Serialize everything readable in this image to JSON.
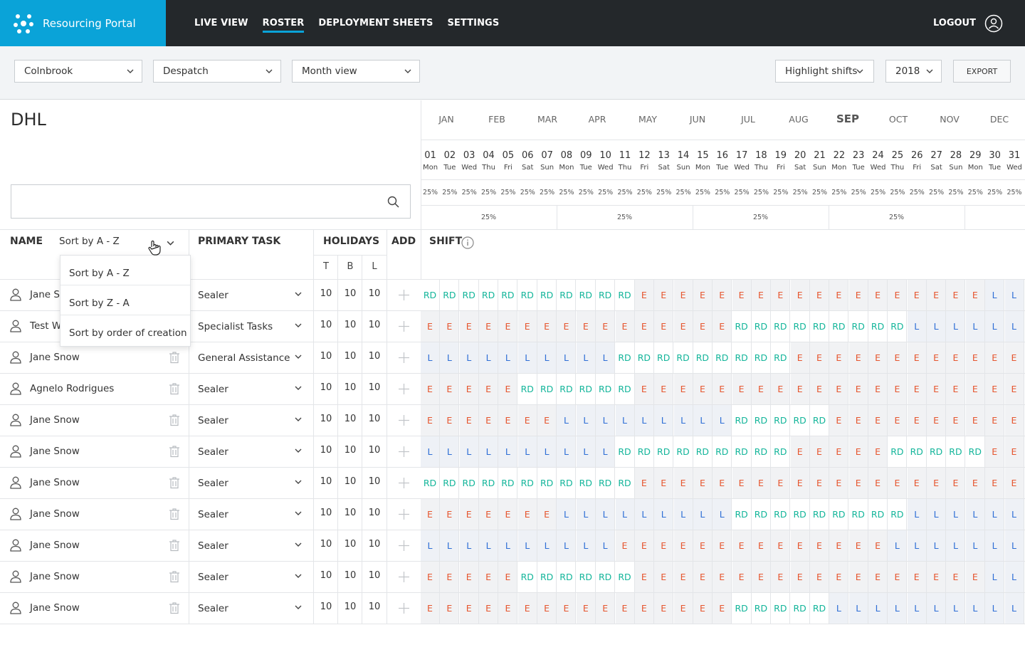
{
  "nav": {
    "brand": "Resourcing Portal",
    "items": [
      {
        "label": "LIVE VIEW",
        "active": false
      },
      {
        "label": "ROSTER",
        "active": true
      },
      {
        "label": "DEPLOYMENT SHEETS",
        "active": false
      },
      {
        "label": "SETTINGS",
        "active": false
      }
    ],
    "logout": "LOGOUT"
  },
  "filters": {
    "site": "Colnbrook",
    "department": "Despatch",
    "view": "Month view",
    "highlight": "Highlight shifts",
    "year": "2018",
    "export": "EXPORT"
  },
  "company": "DHL",
  "search": {
    "placeholder": "",
    "value": ""
  },
  "months": [
    "JAN",
    "FEB",
    "MAR",
    "APR",
    "MAY",
    "JUN",
    "JUL",
    "AUG",
    "SEP",
    "OCT",
    "NOV",
    "DEC"
  ],
  "current_month": "SEP",
  "days": [
    {
      "n": "01",
      "d": "Mon"
    },
    {
      "n": "02",
      "d": "Tue"
    },
    {
      "n": "03",
      "d": "Wed"
    },
    {
      "n": "04",
      "d": "Thu"
    },
    {
      "n": "05",
      "d": "Fri"
    },
    {
      "n": "06",
      "d": "Sat"
    },
    {
      "n": "07",
      "d": "Sun"
    },
    {
      "n": "08",
      "d": "Mon"
    },
    {
      "n": "09",
      "d": "Tue"
    },
    {
      "n": "10",
      "d": "Wed"
    },
    {
      "n": "11",
      "d": "Thu"
    },
    {
      "n": "12",
      "d": "Fri"
    },
    {
      "n": "13",
      "d": "Sat"
    },
    {
      "n": "14",
      "d": "Sun"
    },
    {
      "n": "15",
      "d": "Mon"
    },
    {
      "n": "16",
      "d": "Tue"
    },
    {
      "n": "17",
      "d": "Wed"
    },
    {
      "n": "18",
      "d": "Thu"
    },
    {
      "n": "19",
      "d": "Fri"
    },
    {
      "n": "20",
      "d": "Sat"
    },
    {
      "n": "21",
      "d": "Sun"
    },
    {
      "n": "22",
      "d": "Mon"
    },
    {
      "n": "23",
      "d": "Tue"
    },
    {
      "n": "24",
      "d": "Wed"
    },
    {
      "n": "25",
      "d": "Thu"
    },
    {
      "n": "26",
      "d": "Fri"
    },
    {
      "n": "27",
      "d": "Sat"
    },
    {
      "n": "28",
      "d": "Sun"
    },
    {
      "n": "29",
      "d": "Mon"
    },
    {
      "n": "30",
      "d": "Tue"
    },
    {
      "n": "31",
      "d": "Wed"
    }
  ],
  "day_percent": "25%",
  "week_percents": [
    "25%",
    "25%",
    "25%",
    "25%"
  ],
  "columns": {
    "name": "NAME",
    "sort": "Sort by A - Z",
    "primary_task": "PRIMARY TASK",
    "holidays": "HOLIDAYS",
    "holiday_sub": [
      "T",
      "B",
      "L"
    ],
    "add": "ADD",
    "shift": "SHIFT"
  },
  "sort_dropdown": [
    "Sort by A - Z",
    "Sort by Z - A",
    "Sort by order of creation"
  ],
  "rows": [
    {
      "name": "Jane Snow",
      "task": "Sealer",
      "hol": [
        "10",
        "10",
        "10"
      ],
      "shifts": [
        "RD",
        "RD",
        "RD",
        "RD",
        "RD",
        "RD",
        "RD",
        "RD",
        "RD",
        "RD",
        "RD",
        "E",
        "E",
        "E",
        "E",
        "E",
        "E",
        "E",
        "E",
        "E",
        "E",
        "E",
        "E",
        "E",
        "E",
        "E",
        "E",
        "E",
        "E",
        "L",
        "L"
      ]
    },
    {
      "name": "Test W",
      "task": "Specialist Tasks",
      "hol": [
        "10",
        "10",
        "10"
      ],
      "shifts": [
        "E",
        "E",
        "E",
        "E",
        "E",
        "E",
        "E",
        "E",
        "E",
        "E",
        "E",
        "E",
        "E",
        "E",
        "E",
        "E",
        "RD",
        "RD",
        "RD",
        "RD",
        "RD",
        "RD",
        "RD",
        "RD",
        "RD",
        "L",
        "L",
        "L",
        "L",
        "L",
        "L"
      ]
    },
    {
      "name": "Jane Snow",
      "task": "General Assistance",
      "hol": [
        "10",
        "10",
        "10"
      ],
      "shifts": [
        "L",
        "L",
        "L",
        "L",
        "L",
        "L",
        "L",
        "L",
        "L",
        "L",
        "RD",
        "RD",
        "RD",
        "RD",
        "RD",
        "RD",
        "RD",
        "RD",
        "RD",
        "E",
        "E",
        "E",
        "E",
        "E",
        "E",
        "E",
        "E",
        "E",
        "E",
        "E",
        "E"
      ]
    },
    {
      "name": "Agnelo Rodrigues",
      "task": "Sealer",
      "hol": [
        "10",
        "10",
        "10"
      ],
      "shifts": [
        "E",
        "E",
        "E",
        "E",
        "E",
        "RD",
        "RD",
        "RD",
        "RD",
        "RD",
        "RD",
        "E",
        "E",
        "E",
        "E",
        "E",
        "E",
        "E",
        "E",
        "E",
        "E",
        "E",
        "E",
        "E",
        "E",
        "E",
        "E",
        "E",
        "E",
        "E",
        "E"
      ]
    },
    {
      "name": "Jane Snow",
      "task": "Sealer",
      "hol": [
        "10",
        "10",
        "10"
      ],
      "shifts": [
        "E",
        "E",
        "E",
        "E",
        "E",
        "E",
        "E",
        "L",
        "L",
        "L",
        "L",
        "L",
        "L",
        "L",
        "L",
        "L",
        "RD",
        "RD",
        "RD",
        "RD",
        "RD",
        "E",
        "E",
        "E",
        "E",
        "E",
        "E",
        "E",
        "E",
        "E",
        "E"
      ]
    },
    {
      "name": "Jane Snow",
      "task": "Sealer",
      "hol": [
        "10",
        "10",
        "10"
      ],
      "shifts": [
        "L",
        "L",
        "L",
        "L",
        "L",
        "L",
        "L",
        "L",
        "L",
        "L",
        "RD",
        "RD",
        "RD",
        "RD",
        "RD",
        "RD",
        "RD",
        "RD",
        "RD",
        "E",
        "E",
        "E",
        "E",
        "E",
        "RD",
        "RD",
        "RD",
        "RD",
        "RD",
        "E",
        "E"
      ]
    },
    {
      "name": "Jane Snow",
      "task": "Sealer",
      "hol": [
        "10",
        "10",
        "10"
      ],
      "shifts": [
        "RD",
        "RD",
        "RD",
        "RD",
        "RD",
        "RD",
        "RD",
        "RD",
        "RD",
        "RD",
        "RD",
        "E",
        "E",
        "E",
        "E",
        "E",
        "E",
        "E",
        "E",
        "E",
        "E",
        "E",
        "E",
        "E",
        "E",
        "E",
        "E",
        "E",
        "E",
        "E",
        "E"
      ]
    },
    {
      "name": "Jane Snow",
      "task": "Sealer",
      "hol": [
        "10",
        "10",
        "10"
      ],
      "shifts": [
        "E",
        "E",
        "E",
        "E",
        "E",
        "E",
        "E",
        "L",
        "L",
        "L",
        "L",
        "L",
        "L",
        "L",
        "L",
        "L",
        "RD",
        "RD",
        "RD",
        "RD",
        "RD",
        "RD",
        "RD",
        "RD",
        "RD",
        "L",
        "L",
        "L",
        "L",
        "L",
        "L"
      ]
    },
    {
      "name": "Jane Snow",
      "task": "Sealer",
      "hol": [
        "10",
        "10",
        "10"
      ],
      "shifts": [
        "L",
        "L",
        "L",
        "L",
        "L",
        "L",
        "L",
        "L",
        "L",
        "L",
        "E",
        "E",
        "E",
        "E",
        "E",
        "E",
        "E",
        "E",
        "E",
        "E",
        "E",
        "E",
        "E",
        "E",
        "L",
        "L",
        "L",
        "L",
        "L",
        "L",
        "L"
      ]
    },
    {
      "name": "Jane Snow",
      "task": "Sealer",
      "hol": [
        "10",
        "10",
        "10"
      ],
      "shifts": [
        "E",
        "E",
        "E",
        "E",
        "E",
        "RD",
        "RD",
        "RD",
        "RD",
        "RD",
        "RD",
        "E",
        "E",
        "E",
        "E",
        "E",
        "E",
        "E",
        "E",
        "E",
        "E",
        "E",
        "E",
        "E",
        "E",
        "E",
        "E",
        "E",
        "E",
        "L",
        "L"
      ]
    },
    {
      "name": "Jane Snow",
      "task": "Sealer",
      "hol": [
        "10",
        "10",
        "10"
      ],
      "shifts": [
        "E",
        "E",
        "E",
        "E",
        "E",
        "E",
        "E",
        "E",
        "E",
        "E",
        "E",
        "E",
        "E",
        "E",
        "E",
        "E",
        "RD",
        "RD",
        "RD",
        "RD",
        "RD",
        "L",
        "L",
        "L",
        "L",
        "L",
        "L",
        "L",
        "L",
        "L",
        "L"
      ]
    }
  ],
  "colors": {
    "brand": "#0aa3d8",
    "nav_bg": "#24282b",
    "shift_E": "#e6562f",
    "shift_L": "#2f6fd6",
    "shift_RD": "#13b59a"
  }
}
